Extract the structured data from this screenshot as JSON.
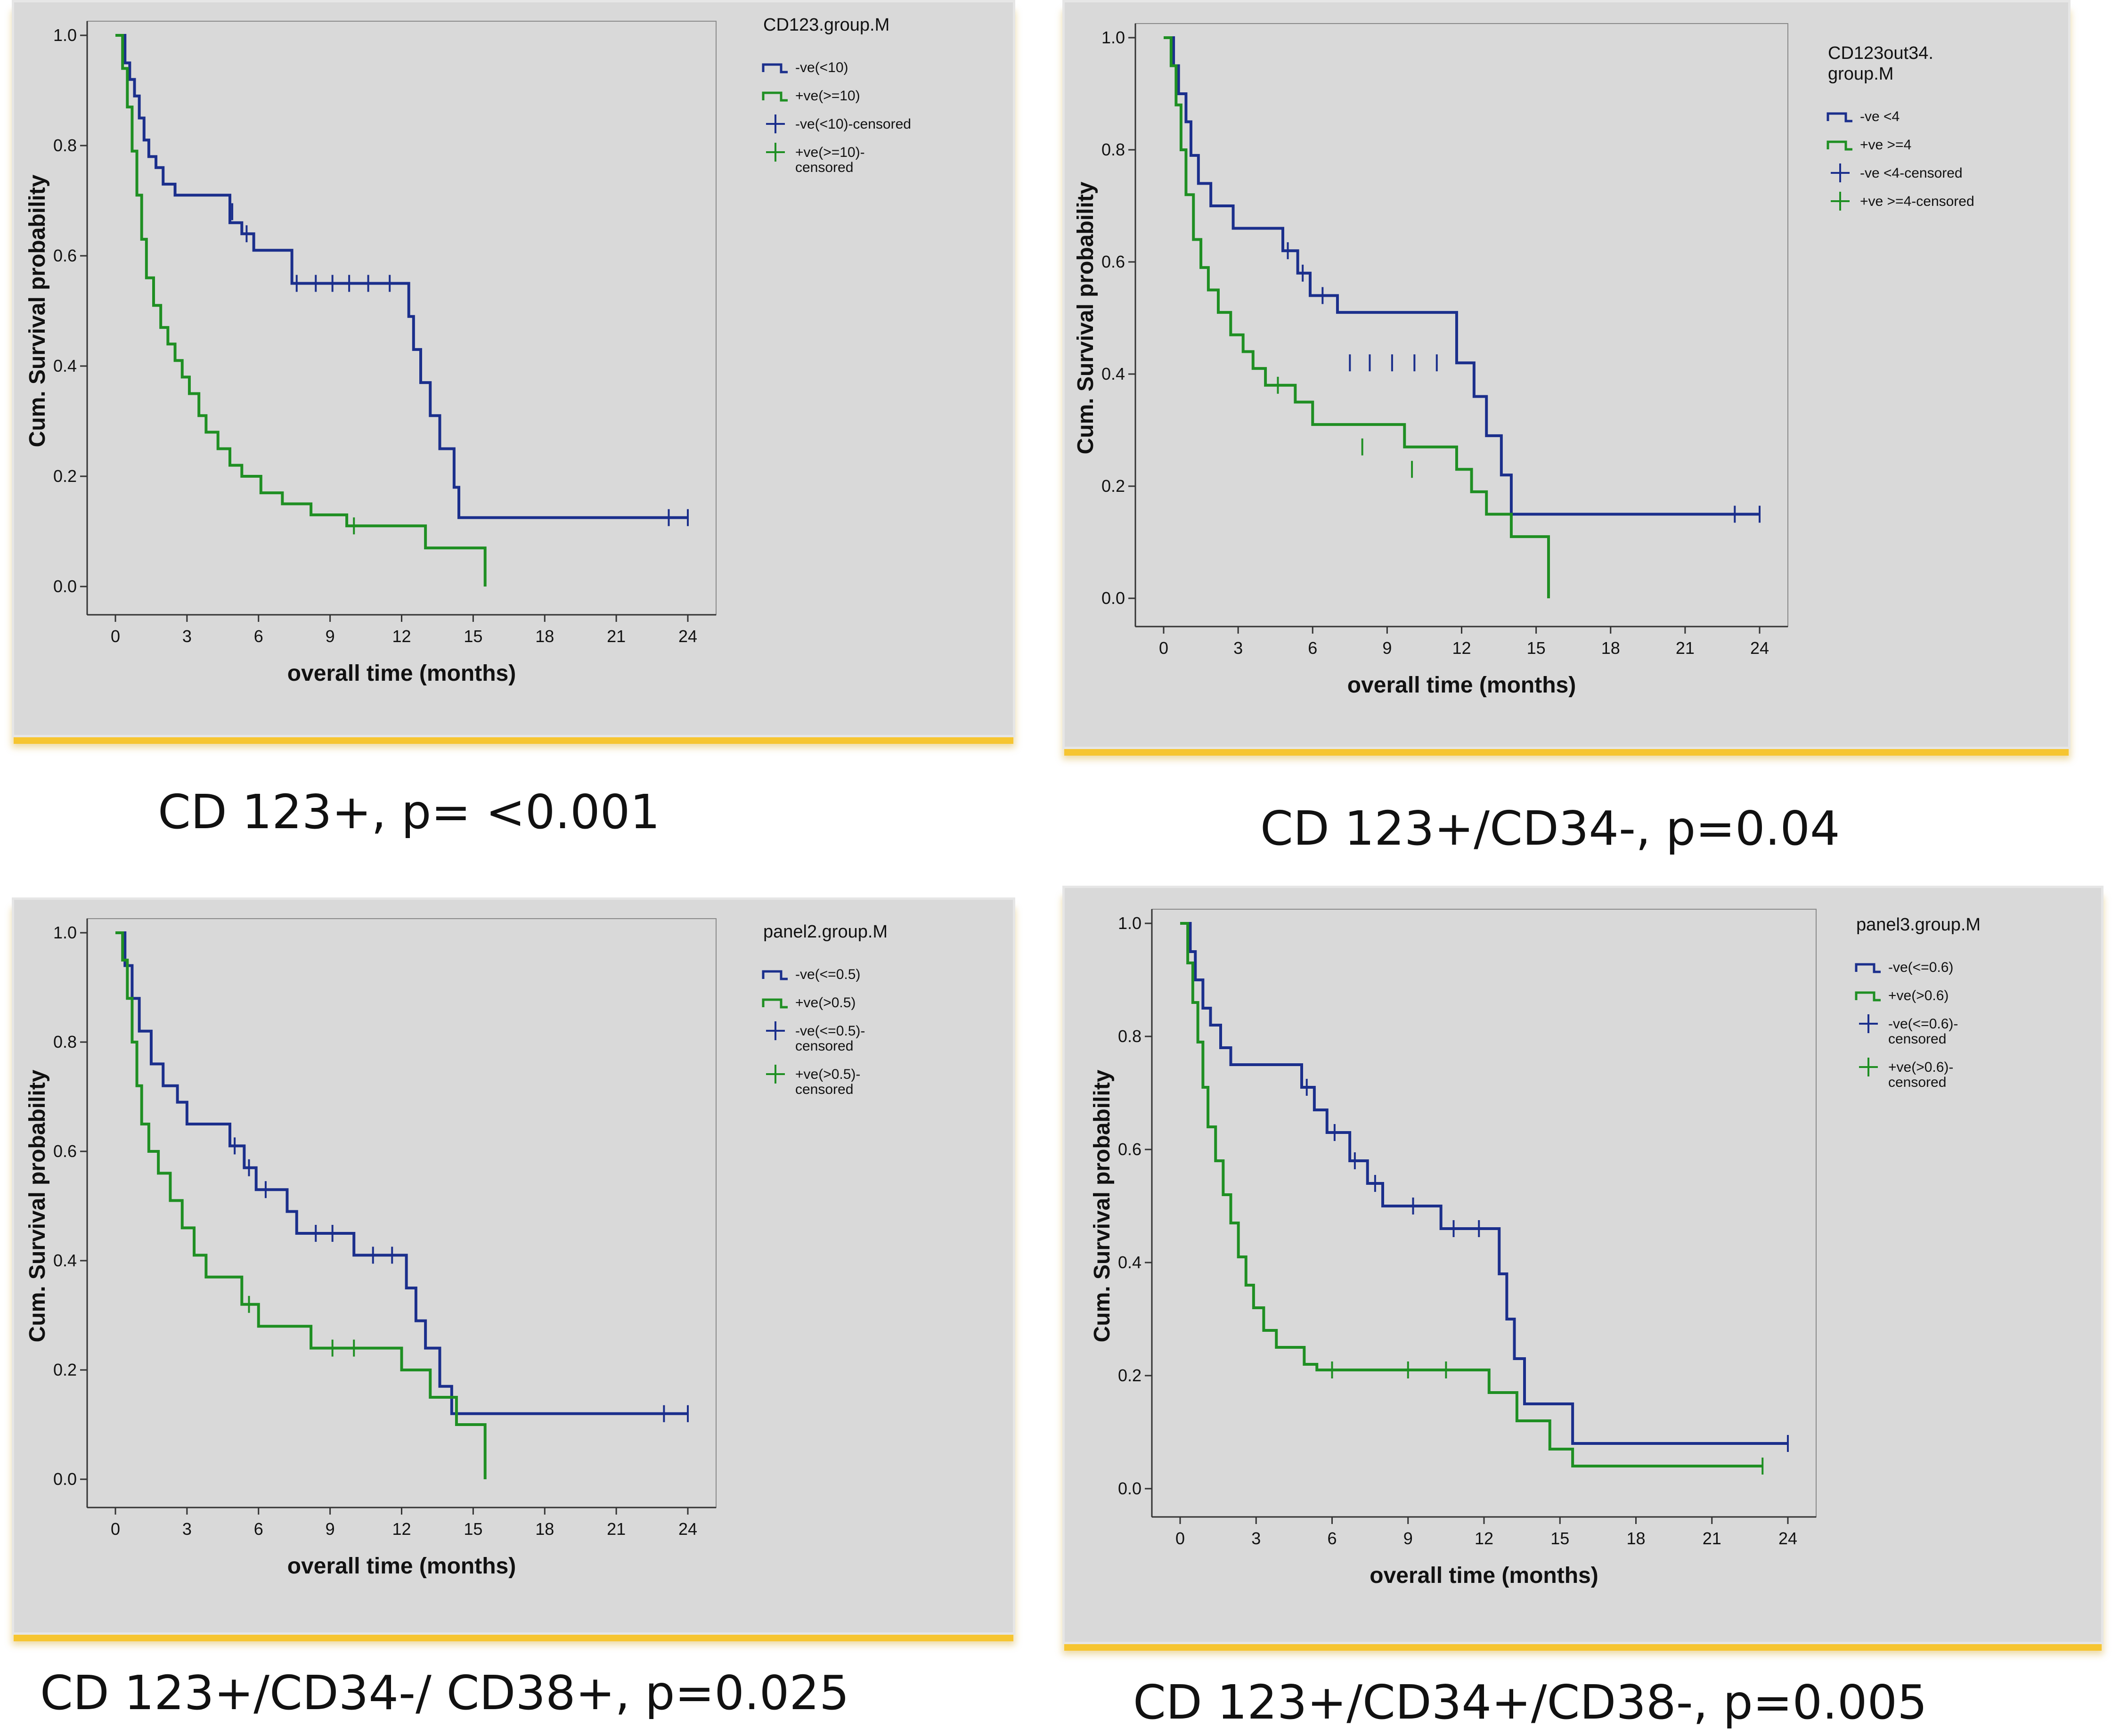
{
  "colors": {
    "low": "#1b2f8c",
    "high": "#1f8f23",
    "panel_bg": "#d9d9d9",
    "accent": "#f6c531"
  },
  "chart_data": [
    {
      "type": "line",
      "caption": "CD 123+, p= <0.001",
      "xlabel": "overall time (months)",
      "ylabel": "Cum. Survival probability",
      "xlim": [
        0,
        24
      ],
      "ylim": [
        0,
        1.0
      ],
      "xticks": [
        "0",
        "3",
        "6",
        "9",
        "12",
        "15",
        "18",
        "21",
        "24"
      ],
      "yticks": [
        "0.0",
        "0.2",
        "0.4",
        "0.6",
        "0.8",
        "1.0"
      ],
      "legend_title": [
        "CD123.group.M"
      ],
      "legend_items": [
        {
          "kind": "line",
          "color": "low",
          "lines": [
            "-ve(<10)"
          ]
        },
        {
          "kind": "line",
          "color": "high",
          "lines": [
            "+ve(>=10)"
          ]
        },
        {
          "kind": "censor",
          "color": "low",
          "lines": [
            "-ve(<10)-censored"
          ]
        },
        {
          "kind": "censor",
          "color": "high",
          "lines": [
            "+ve(>=10)-",
            "censored"
          ]
        }
      ],
      "series": [
        {
          "name": "-ve(<10)",
          "color": "low",
          "x": [
            0,
            0.4,
            0.6,
            0.8,
            1.0,
            1.2,
            1.4,
            1.7,
            2.0,
            2.5,
            4.8,
            5.3,
            5.8,
            7.4,
            12.3,
            12.5,
            12.8,
            13.2,
            13.6,
            14.2,
            14.4,
            24
          ],
          "y": [
            1.0,
            0.95,
            0.92,
            0.89,
            0.85,
            0.81,
            0.78,
            0.76,
            0.73,
            0.71,
            0.66,
            0.64,
            0.61,
            0.55,
            0.49,
            0.43,
            0.37,
            0.31,
            0.25,
            0.18,
            0.125,
            0.125
          ],
          "censor_x": [
            4.9,
            5.5,
            7.6,
            8.4,
            9.1,
            9.8,
            10.6,
            11.5,
            23.2,
            24
          ],
          "censor_y": [
            0.68,
            0.64,
            0.55,
            0.55,
            0.55,
            0.55,
            0.55,
            0.55,
            0.125,
            0.125
          ]
        },
        {
          "name": "+ve(>=10)",
          "color": "high",
          "x": [
            0,
            0.3,
            0.5,
            0.7,
            0.9,
            1.1,
            1.3,
            1.6,
            1.9,
            2.2,
            2.5,
            2.8,
            3.1,
            3.5,
            3.8,
            4.3,
            4.8,
            5.3,
            6.1,
            7.0,
            8.2,
            9.7,
            13.0,
            15.5
          ],
          "y": [
            1.0,
            0.94,
            0.87,
            0.79,
            0.71,
            0.63,
            0.56,
            0.51,
            0.47,
            0.44,
            0.41,
            0.38,
            0.35,
            0.31,
            0.28,
            0.25,
            0.22,
            0.2,
            0.17,
            0.15,
            0.13,
            0.11,
            0.07,
            0.0
          ],
          "censor_x": [
            10.0
          ],
          "censor_y": [
            0.11
          ]
        }
      ]
    },
    {
      "type": "line",
      "caption": "CD 123+/CD34-, p=0.04",
      "xlabel": "overall time (months)",
      "ylabel": "Cum. Survival probability",
      "xlim": [
        0,
        24
      ],
      "ylim": [
        0,
        1.0
      ],
      "xticks": [
        "0",
        "3",
        "6",
        "9",
        "12",
        "15",
        "18",
        "21",
        "24"
      ],
      "yticks": [
        "0.0",
        "0.2",
        "0.4",
        "0.6",
        "0.8",
        "1.0"
      ],
      "legend_title": [
        "CD123out34.",
        "group.M"
      ],
      "legend_items": [
        {
          "kind": "line",
          "color": "low",
          "lines": [
            "-ve <4"
          ]
        },
        {
          "kind": "line",
          "color": "high",
          "lines": [
            "+ve >=4"
          ]
        },
        {
          "kind": "censor",
          "color": "low",
          "lines": [
            "-ve <4-censored"
          ]
        },
        {
          "kind": "censor",
          "color": "high",
          "lines": [
            "+ve >=4-censored"
          ]
        }
      ],
      "series": [
        {
          "name": "-ve <4",
          "color": "low",
          "x": [
            0,
            0.4,
            0.6,
            0.9,
            1.1,
            1.4,
            1.9,
            2.8,
            4.8,
            5.4,
            5.9,
            7.0,
            11.8,
            12.5,
            13.0,
            13.6,
            14.0,
            24
          ],
          "y": [
            1.0,
            0.95,
            0.9,
            0.85,
            0.79,
            0.74,
            0.7,
            0.66,
            0.62,
            0.58,
            0.54,
            0.51,
            0.42,
            0.36,
            0.29,
            0.22,
            0.15,
            0.15
          ],
          "censor_x": [
            5.0,
            5.6,
            6.4,
            7.5,
            8.3,
            9.2,
            10.1,
            11.0,
            23.0,
            24
          ],
          "censor_y": [
            0.62,
            0.58,
            0.54,
            0.42,
            0.42,
            0.42,
            0.42,
            0.42,
            0.15,
            0.15
          ]
        },
        {
          "name": "+ve >=4",
          "color": "high",
          "x": [
            0,
            0.3,
            0.5,
            0.7,
            0.9,
            1.2,
            1.5,
            1.8,
            2.2,
            2.7,
            3.2,
            3.6,
            4.1,
            5.3,
            6.0,
            9.7,
            11.8,
            12.4,
            13.0,
            14.0,
            15.5
          ],
          "y": [
            1.0,
            0.95,
            0.88,
            0.8,
            0.72,
            0.64,
            0.59,
            0.55,
            0.51,
            0.47,
            0.44,
            0.41,
            0.38,
            0.35,
            0.31,
            0.27,
            0.23,
            0.19,
            0.15,
            0.11,
            0.0
          ],
          "censor_x": [
            4.6,
            8.0,
            10.0
          ],
          "censor_y": [
            0.38,
            0.27,
            0.23
          ]
        }
      ]
    },
    {
      "type": "line",
      "caption": "CD 123+/CD34-/ CD38+, p=0.025",
      "xlabel": "overall time (months)",
      "ylabel": "Cum. Survival probability",
      "xlim": [
        0,
        24
      ],
      "ylim": [
        0,
        1.0
      ],
      "xticks": [
        "0",
        "3",
        "6",
        "9",
        "12",
        "15",
        "18",
        "21",
        "24"
      ],
      "yticks": [
        "0.0",
        "0.2",
        "0.4",
        "0.6",
        "0.8",
        "1.0"
      ],
      "legend_title": [
        "panel2.group.M"
      ],
      "legend_items": [
        {
          "kind": "line",
          "color": "low",
          "lines": [
            "-ve(<=0.5)"
          ]
        },
        {
          "kind": "line",
          "color": "high",
          "lines": [
            "+ve(>0.5)"
          ]
        },
        {
          "kind": "censor",
          "color": "low",
          "lines": [
            "-ve(<=0.5)-",
            "censored"
          ]
        },
        {
          "kind": "censor",
          "color": "high",
          "lines": [
            "+ve(>0.5)-",
            "censored"
          ]
        }
      ],
      "series": [
        {
          "name": "-ve(<=0.5)",
          "color": "low",
          "x": [
            0,
            0.4,
            0.7,
            1.0,
            1.5,
            2.0,
            2.6,
            3.0,
            4.8,
            5.4,
            5.9,
            7.2,
            7.6,
            10.0,
            12.2,
            12.6,
            13.0,
            13.6,
            14.1,
            24
          ],
          "y": [
            1.0,
            0.94,
            0.88,
            0.82,
            0.76,
            0.72,
            0.69,
            0.65,
            0.61,
            0.57,
            0.53,
            0.49,
            0.45,
            0.41,
            0.35,
            0.29,
            0.24,
            0.17,
            0.12,
            0.12
          ],
          "censor_x": [
            5.0,
            5.6,
            6.3,
            8.4,
            9.1,
            10.8,
            11.6,
            23.0,
            24
          ],
          "censor_y": [
            0.61,
            0.57,
            0.53,
            0.45,
            0.45,
            0.41,
            0.41,
            0.12,
            0.12
          ]
        },
        {
          "name": "+ve(>0.5)",
          "color": "high",
          "x": [
            0,
            0.3,
            0.5,
            0.7,
            0.9,
            1.1,
            1.4,
            1.8,
            2.3,
            2.8,
            3.3,
            3.8,
            5.3,
            6.0,
            8.2,
            12.0,
            13.2,
            14.3,
            15.5
          ],
          "y": [
            1.0,
            0.95,
            0.88,
            0.8,
            0.72,
            0.65,
            0.6,
            0.56,
            0.51,
            0.46,
            0.41,
            0.37,
            0.32,
            0.28,
            0.24,
            0.2,
            0.15,
            0.1,
            0.0
          ],
          "censor_x": [
            5.6,
            9.1,
            10.0
          ],
          "censor_y": [
            0.32,
            0.24,
            0.24
          ]
        }
      ]
    },
    {
      "type": "line",
      "caption": "CD 123+/CD34+/CD38-, p=0.005",
      "xlabel": "overall time (months)",
      "ylabel": "Cum. Survival probability",
      "xlim": [
        0,
        24
      ],
      "ylim": [
        0,
        1.0
      ],
      "xticks": [
        "0",
        "3",
        "6",
        "9",
        "12",
        "15",
        "18",
        "21",
        "24"
      ],
      "yticks": [
        "0.0",
        "0.2",
        "0.4",
        "0.6",
        "0.8",
        "1.0"
      ],
      "legend_title": [
        "panel3.group.M"
      ],
      "legend_items": [
        {
          "kind": "line",
          "color": "low",
          "lines": [
            "-ve(<=0.6)"
          ]
        },
        {
          "kind": "line",
          "color": "high",
          "lines": [
            "+ve(>0.6)"
          ]
        },
        {
          "kind": "censor",
          "color": "low",
          "lines": [
            "-ve(<=0.6)-",
            "censored"
          ]
        },
        {
          "kind": "censor",
          "color": "high",
          "lines": [
            "+ve(>0.6)-",
            "censored"
          ]
        }
      ],
      "series": [
        {
          "name": "-ve(<=0.6)",
          "color": "low",
          "x": [
            0,
            0.4,
            0.6,
            0.9,
            1.2,
            1.6,
            2.0,
            4.8,
            5.3,
            5.8,
            6.7,
            7.4,
            8.0,
            8.5,
            10.3,
            12.6,
            12.9,
            13.2,
            13.6,
            15.5,
            24
          ],
          "y": [
            1.0,
            0.95,
            0.9,
            0.85,
            0.82,
            0.78,
            0.75,
            0.71,
            0.67,
            0.63,
            0.58,
            0.54,
            0.5,
            0.5,
            0.46,
            0.38,
            0.3,
            0.23,
            0.15,
            0.08,
            0.08
          ],
          "censor_x": [
            5.0,
            6.1,
            6.9,
            7.7,
            9.2,
            10.8,
            11.8,
            24
          ],
          "censor_y": [
            0.71,
            0.63,
            0.58,
            0.54,
            0.5,
            0.46,
            0.46,
            0.08
          ]
        },
        {
          "name": "+ve(>0.6)",
          "color": "high",
          "x": [
            0,
            0.3,
            0.5,
            0.7,
            0.9,
            1.1,
            1.4,
            1.7,
            2.0,
            2.3,
            2.6,
            2.9,
            3.3,
            3.8,
            4.9,
            5.4,
            12.2,
            13.3,
            14.6,
            15.5,
            23.0
          ],
          "y": [
            1.0,
            0.93,
            0.86,
            0.79,
            0.71,
            0.64,
            0.58,
            0.52,
            0.47,
            0.41,
            0.36,
            0.32,
            0.28,
            0.25,
            0.22,
            0.21,
            0.17,
            0.12,
            0.07,
            0.04,
            0.04
          ],
          "censor_x": [
            6.0,
            9.0,
            10.5,
            23.0
          ],
          "censor_y": [
            0.21,
            0.21,
            0.21,
            0.04
          ]
        }
      ]
    }
  ]
}
